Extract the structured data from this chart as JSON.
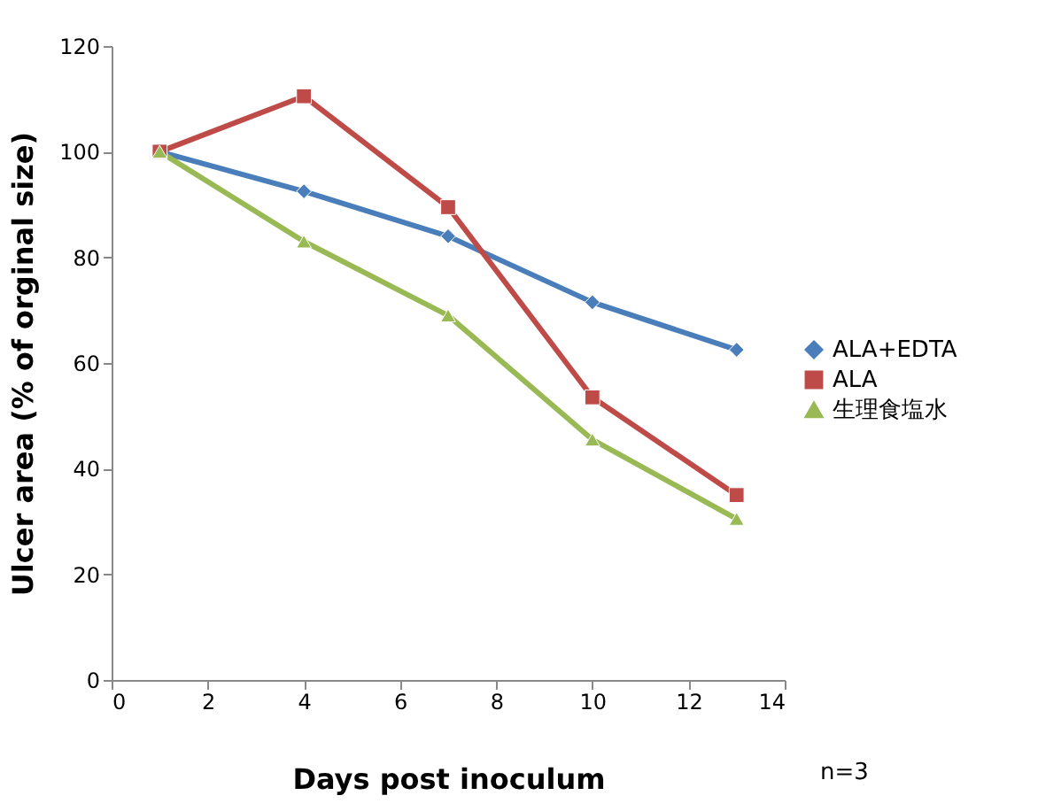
{
  "chart_data": {
    "type": "line",
    "xlabel": "Days post inoculum",
    "ylabel": "Ulcer area (% of orginal size)",
    "x": [
      1,
      4,
      7,
      10,
      13
    ],
    "series": [
      {
        "name": "ALA+EDTA",
        "color": "#4a7ebb",
        "marker": "diamond",
        "values": [
          100,
          92.5,
          84,
          71.5,
          62.5
        ]
      },
      {
        "name": "ALA",
        "color": "#be4b48",
        "marker": "square",
        "values": [
          100,
          110.5,
          89.5,
          53.5,
          35
        ]
      },
      {
        "name": "生理食塩水",
        "color": "#98b954",
        "marker": "triangle",
        "values": [
          100,
          83,
          69,
          45.5,
          30.5
        ]
      }
    ],
    "xlim": [
      0,
      14
    ],
    "xticks": [
      0,
      2,
      4,
      6,
      8,
      10,
      12,
      14
    ],
    "ylim": [
      0,
      120
    ],
    "yticks": [
      0,
      20,
      40,
      60,
      80,
      100,
      120
    ],
    "grid": false,
    "legend": "right",
    "line_style": "solid",
    "annotations": [
      "n=3"
    ]
  }
}
